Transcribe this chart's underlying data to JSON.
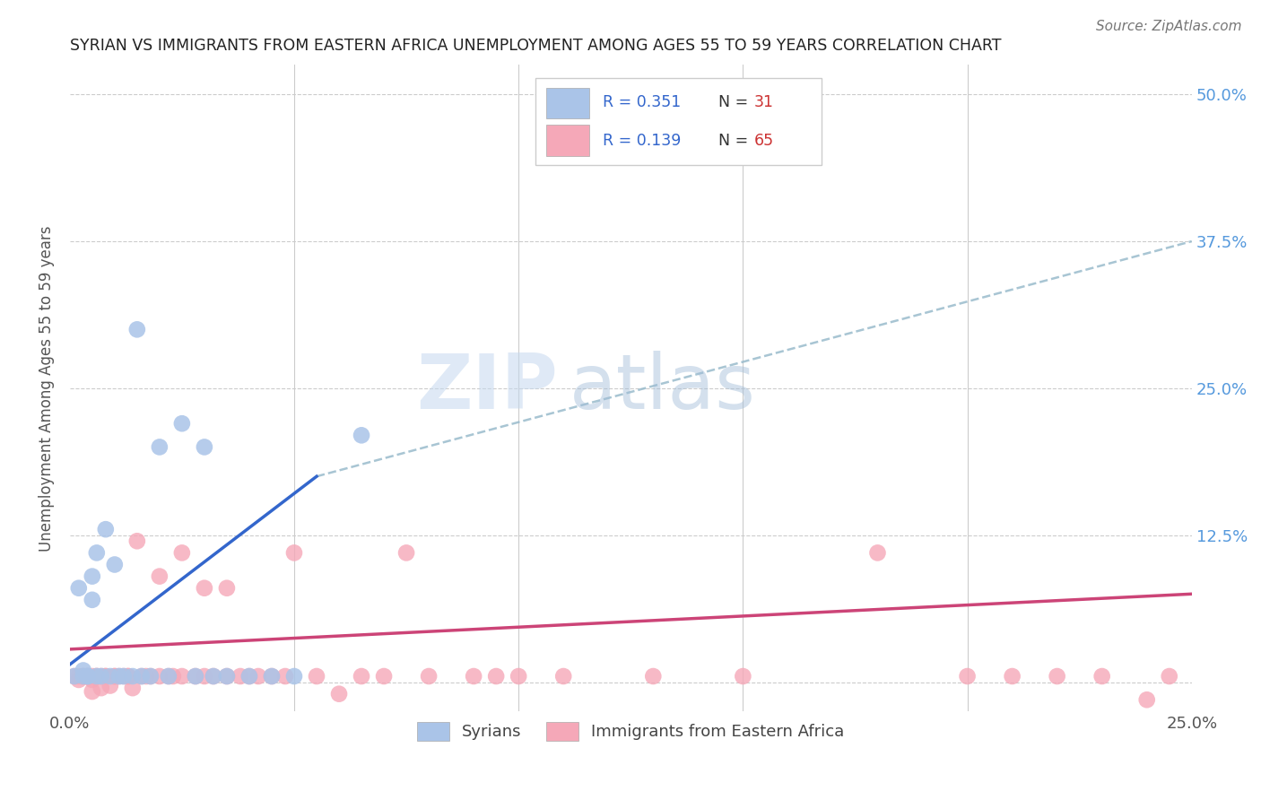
{
  "title": "SYRIAN VS IMMIGRANTS FROM EASTERN AFRICA UNEMPLOYMENT AMONG AGES 55 TO 59 YEARS CORRELATION CHART",
  "source": "Source: ZipAtlas.com",
  "ylabel": "Unemployment Among Ages 55 to 59 years",
  "xlim": [
    0.0,
    0.25
  ],
  "ylim": [
    -0.025,
    0.525
  ],
  "grid_color": "#cccccc",
  "background_color": "#ffffff",
  "syrian_color": "#aac4e8",
  "eastern_africa_color": "#f5a8b8",
  "syrian_line_color": "#3366cc",
  "eastern_africa_line_color": "#cc4477",
  "dashed_line_color": "#99bbcc",
  "legend_label_syrian": "Syrians",
  "legend_label_ea": "Immigrants from Eastern Africa",
  "watermark_zip": "ZIP",
  "watermark_atlas": "atlas",
  "legend_text_color": "#3366cc",
  "legend_box_color": "#cccccc",
  "right_tick_color": "#5599dd",
  "syrian_x": [
    0.001,
    0.002,
    0.003,
    0.003,
    0.004,
    0.004,
    0.005,
    0.005,
    0.006,
    0.006,
    0.007,
    0.008,
    0.009,
    0.01,
    0.011,
    0.012,
    0.014,
    0.015,
    0.016,
    0.018,
    0.02,
    0.022,
    0.025,
    0.028,
    0.03,
    0.032,
    0.035,
    0.04,
    0.045,
    0.05,
    0.065
  ],
  "syrian_y": [
    0.005,
    0.08,
    0.01,
    0.005,
    0.005,
    0.005,
    0.09,
    0.07,
    0.005,
    0.11,
    0.005,
    0.13,
    0.005,
    0.1,
    0.005,
    0.005,
    0.005,
    0.3,
    0.005,
    0.005,
    0.2,
    0.005,
    0.22,
    0.005,
    0.2,
    0.005,
    0.005,
    0.005,
    0.005,
    0.005,
    0.21
  ],
  "ea_x": [
    0.001,
    0.002,
    0.002,
    0.003,
    0.003,
    0.004,
    0.004,
    0.005,
    0.005,
    0.005,
    0.006,
    0.006,
    0.007,
    0.007,
    0.008,
    0.008,
    0.009,
    0.01,
    0.01,
    0.011,
    0.012,
    0.013,
    0.013,
    0.014,
    0.015,
    0.016,
    0.017,
    0.018,
    0.02,
    0.02,
    0.022,
    0.023,
    0.025,
    0.025,
    0.028,
    0.03,
    0.03,
    0.032,
    0.035,
    0.035,
    0.038,
    0.04,
    0.042,
    0.045,
    0.048,
    0.05,
    0.055,
    0.06,
    0.065,
    0.07,
    0.075,
    0.08,
    0.09,
    0.095,
    0.1,
    0.11,
    0.13,
    0.15,
    0.18,
    0.2,
    0.21,
    0.22,
    0.23,
    0.24,
    0.245
  ],
  "ea_y": [
    0.005,
    0.002,
    0.005,
    0.005,
    0.005,
    0.005,
    0.005,
    0.002,
    0.005,
    -0.008,
    0.005,
    0.005,
    0.005,
    -0.005,
    0.005,
    0.005,
    -0.003,
    0.005,
    0.005,
    0.005,
    0.005,
    0.005,
    0.005,
    -0.005,
    0.12,
    0.005,
    0.005,
    0.005,
    0.005,
    0.09,
    0.005,
    0.005,
    0.005,
    0.11,
    0.005,
    0.005,
    0.08,
    0.005,
    0.005,
    0.08,
    0.005,
    0.005,
    0.005,
    0.005,
    0.005,
    0.11,
    0.005,
    -0.01,
    0.005,
    0.005,
    0.11,
    0.005,
    0.005,
    0.005,
    0.005,
    0.005,
    0.005,
    0.005,
    0.11,
    0.005,
    0.005,
    0.005,
    0.005,
    -0.015,
    0.005
  ],
  "syr_line_x0": 0.0,
  "syr_line_y0": 0.015,
  "syr_line_x1": 0.055,
  "syr_line_y1": 0.175,
  "dash_line_x0": 0.055,
  "dash_line_y0": 0.175,
  "dash_line_x1": 0.25,
  "dash_line_y1": 0.375,
  "ea_line_x0": 0.0,
  "ea_line_y0": 0.028,
  "ea_line_x1": 0.25,
  "ea_line_y1": 0.075
}
